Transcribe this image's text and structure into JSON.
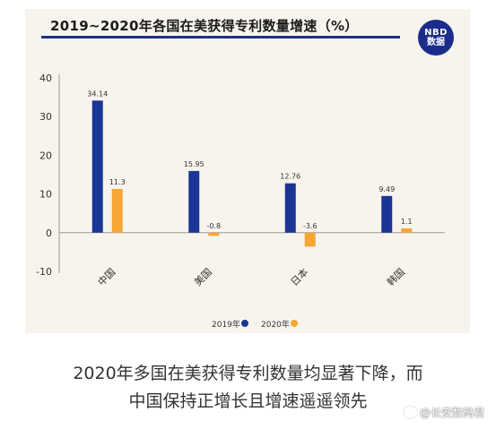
{
  "header": {
    "title": "2019~2020年各国在美获得专利数量增速（%）",
    "logo_line1": "NBD",
    "logo_line2": "数据"
  },
  "caption": {
    "line1": "2020年多国在美获得专利数量均显著下降，而",
    "line2": "中国保持正增长且增速遥遥领先"
  },
  "watermark": {
    "weibo": "@长安数码君"
  },
  "chart_data": {
    "type": "bar",
    "title": "2019~2020年各国在美获得专利数量增速（%）",
    "categories": [
      "中国",
      "美国",
      "日本",
      "韩国"
    ],
    "series": [
      {
        "name": "2019年",
        "values": [
          34.14,
          15.95,
          12.76,
          9.49
        ],
        "color": "#1a3596"
      },
      {
        "name": "2020年",
        "values": [
          11.3,
          -0.8,
          -3.6,
          1.1
        ],
        "color": "#f7a535"
      }
    ],
    "value_labels": [
      [
        "34.14",
        "15.95",
        "12.76",
        "9.49"
      ],
      [
        "11.3",
        "-0.8",
        "-3.6",
        "1.1"
      ]
    ],
    "y_ticks": [
      "-10",
      "0",
      "10",
      "20",
      "30",
      "40"
    ],
    "ylim": [
      -10,
      40
    ],
    "xlabel": "",
    "ylabel": "",
    "grid": false,
    "legend_position": "bottom-center"
  }
}
